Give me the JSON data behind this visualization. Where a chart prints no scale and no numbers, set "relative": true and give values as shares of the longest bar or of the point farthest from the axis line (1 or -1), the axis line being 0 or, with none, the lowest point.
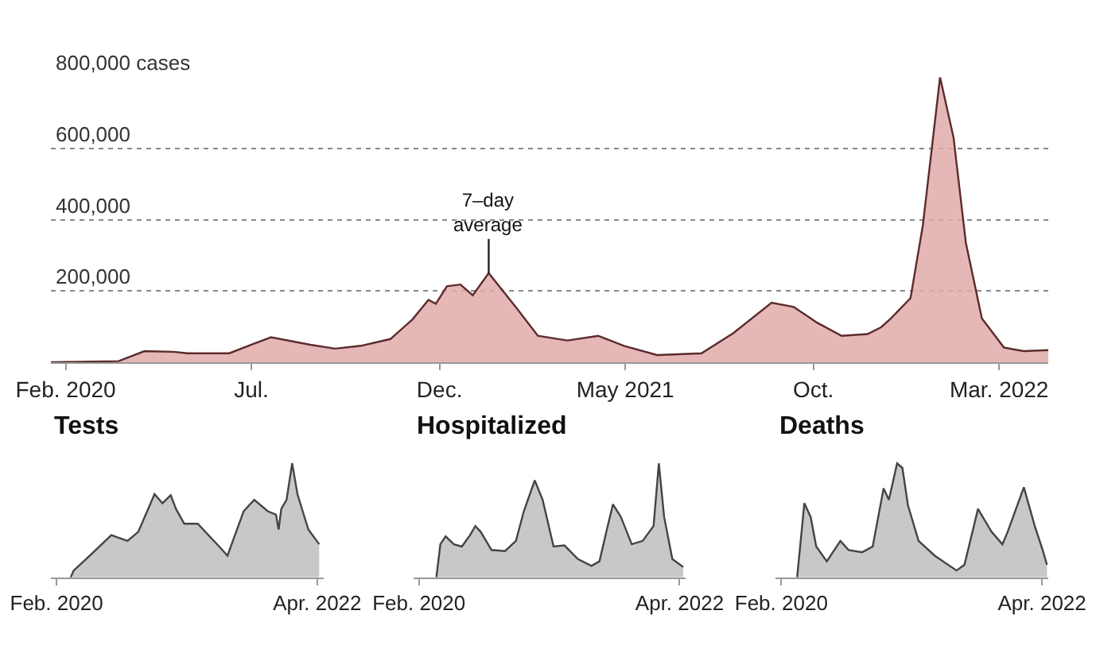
{
  "chart_data": [
    {
      "type": "area",
      "x": [
        "2020-01-20",
        "2020-03-15",
        "2020-04-05",
        "2020-04-29",
        "2020-05-10",
        "2020-06-13",
        "2020-07-01",
        "2020-07-17",
        "2020-08-18",
        "2020-09-07",
        "2020-09-28",
        "2020-10-22",
        "2020-11-09",
        "2020-11-22",
        "2020-11-28",
        "2020-12-07",
        "2020-12-18",
        "2020-12-28",
        "2021-01-10",
        "2021-02-01",
        "2021-02-19",
        "2021-03-15",
        "2021-04-09",
        "2021-04-30",
        "2021-05-27",
        "2021-07-02",
        "2021-07-28",
        "2021-08-28",
        "2021-09-15",
        "2021-10-04",
        "2021-10-24",
        "2021-11-14",
        "2021-11-25",
        "2021-12-03",
        "2021-12-19",
        "2021-12-29",
        "2022-01-12",
        "2022-01-23",
        "2022-02-02",
        "2022-02-15",
        "2022-03-05",
        "2022-03-21",
        "2022-04-10"
      ],
      "series": [
        {
          "color": "#5c2b2b",
          "values": [
            0,
            3000,
            31000,
            29000,
            25000,
            25000,
            49000,
            70000,
            49000,
            38000,
            46000,
            65000,
            120000,
            175000,
            164000,
            213000,
            218000,
            188000,
            250000,
            155000,
            74000,
            61000,
            74000,
            46000,
            20000,
            25000,
            82000,
            167000,
            155000,
            111000,
            74000,
            79000,
            98000,
            123000,
            180000,
            384000,
            800000,
            630000,
            335000,
            123000,
            41000,
            31000,
            34000
          ]
        }
      ],
      "xlim": [
        "2020-01-20",
        "2022-04-10"
      ],
      "ylim": [
        0,
        800000
      ],
      "xticks": [
        {
          "value": "2020-02-01",
          "label": "Feb. 2020"
        },
        {
          "value": "2020-07-01",
          "label": "Jul."
        },
        {
          "value": "2020-12-01",
          "label": "Dec."
        },
        {
          "value": "2021-05-01",
          "label": "May 2021"
        },
        {
          "value": "2021-10-01",
          "label": "Oct."
        },
        {
          "value": "2022-03-01",
          "label": "Mar. 2022"
        }
      ],
      "yticks": [
        {
          "value": 200000,
          "label": "200,000"
        },
        {
          "value": 400000,
          "label": "400,000"
        },
        {
          "value": 600000,
          "label": "600,000"
        },
        {
          "value": 800000,
          "label": "800,000 cases"
        }
      ],
      "grid": "y",
      "annotations": [
        {
          "text": "7–day average",
          "x": "2021-01-10",
          "y": 250000
        }
      ]
    },
    {
      "type": "area",
      "title": "Tests",
      "relative": true,
      "x": [
        "2020-03-15",
        "2020-03-24",
        "2020-05-12",
        "2020-07-16",
        "2020-09-03",
        "2020-10-06",
        "2020-11-24",
        "2020-12-18",
        "2021-01-12",
        "2021-01-28",
        "2021-02-22",
        "2021-04-04",
        "2021-06-08",
        "2021-07-03",
        "2021-08-21",
        "2021-09-22",
        "2021-11-02",
        "2021-11-27",
        "2021-12-05",
        "2021-12-13",
        "2021-12-29",
        "2022-01-15",
        "2022-01-31",
        "2022-03-05",
        "2022-04-07"
      ],
      "series": [
        {
          "color": "#444444",
          "values": [
            0,
            0.06,
            0.19,
            0.37,
            0.32,
            0.4,
            0.73,
            0.65,
            0.72,
            0.6,
            0.47,
            0.47,
            0.27,
            0.19,
            0.58,
            0.68,
            0.58,
            0.55,
            0.42,
            0.6,
            0.68,
            1,
            0.73,
            0.42,
            0.29
          ]
        }
      ],
      "xlim": [
        "2020-01-15",
        "2022-04-20"
      ],
      "xticks": [
        {
          "value": "2020-02-01",
          "label": "Feb. 2020"
        },
        {
          "value": "2022-04-01",
          "label": "Apr. 2022"
        }
      ]
    },
    {
      "type": "area",
      "title": "Hospitalized",
      "relative": true,
      "x": [
        "2020-03-25",
        "2020-04-06",
        "2020-04-22",
        "2020-05-17",
        "2020-06-10",
        "2020-07-05",
        "2020-07-21",
        "2020-08-06",
        "2020-09-08",
        "2020-10-19",
        "2020-11-21",
        "2020-12-15",
        "2021-01-17",
        "2021-02-10",
        "2021-03-15",
        "2021-04-17",
        "2021-05-28",
        "2021-07-08",
        "2021-08-01",
        "2021-08-26",
        "2021-09-11",
        "2021-10-05",
        "2021-11-07",
        "2021-12-10",
        "2022-01-12",
        "2022-01-28",
        "2022-02-13",
        "2022-03-10",
        "2022-04-12"
      ],
      "series": [
        {
          "color": "#444444",
          "values": [
            0,
            0.29,
            0.36,
            0.29,
            0.27,
            0.37,
            0.45,
            0.4,
            0.24,
            0.23,
            0.32,
            0.58,
            0.85,
            0.68,
            0.27,
            0.28,
            0.16,
            0.1,
            0.14,
            0.45,
            0.64,
            0.53,
            0.29,
            0.32,
            0.45,
            1,
            0.53,
            0.16,
            0.09
          ]
        }
      ],
      "xlim": [
        "2020-01-15",
        "2022-04-20"
      ],
      "xticks": [
        {
          "value": "2020-02-01",
          "label": "Feb. 2020"
        },
        {
          "value": "2022-04-01",
          "label": "Apr. 2022"
        }
      ]
    },
    {
      "type": "area",
      "title": "Deaths",
      "relative": true,
      "x": [
        "2020-03-20",
        "2020-04-11",
        "2020-04-30",
        "2020-05-17",
        "2020-06-18",
        "2020-07-29",
        "2020-08-23",
        "2020-10-03",
        "2020-11-04",
        "2020-12-07",
        "2020-12-23",
        "2021-01-17",
        "2021-02-02",
        "2021-02-19",
        "2021-03-23",
        "2021-05-11",
        "2021-07-16",
        "2021-08-09",
        "2021-09-19",
        "2021-10-30",
        "2021-12-02",
        "2021-12-18",
        "2022-02-05",
        "2022-03-10",
        "2022-04-03",
        "2022-04-16"
      ],
      "series": [
        {
          "color": "#444444",
          "values": [
            0,
            0.65,
            0.53,
            0.27,
            0.14,
            0.32,
            0.24,
            0.22,
            0.27,
            0.78,
            0.68,
            1,
            0.96,
            0.63,
            0.32,
            0.19,
            0.06,
            0.11,
            0.6,
            0.4,
            0.29,
            0.4,
            0.79,
            0.45,
            0.24,
            0.11
          ]
        }
      ],
      "xlim": [
        "2020-01-15",
        "2022-04-20"
      ],
      "xticks": [
        {
          "value": "2020-02-01",
          "label": "Feb. 2020"
        },
        {
          "value": "2022-04-01",
          "label": "Apr. 2022"
        }
      ]
    }
  ]
}
